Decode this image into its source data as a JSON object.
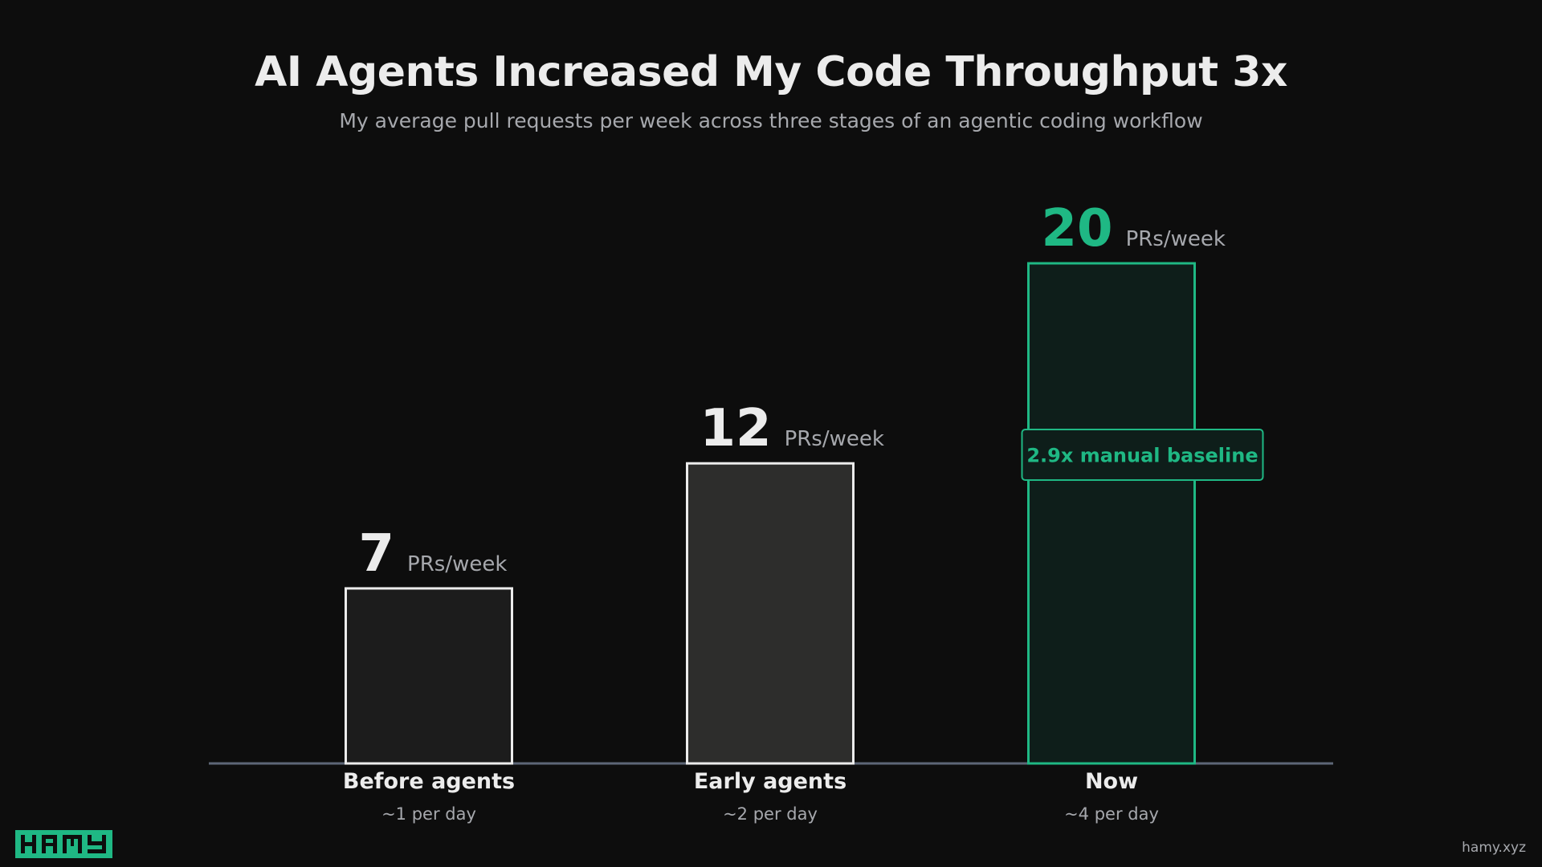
{
  "header": {
    "title": "AI Agents Increased My Code Throughput 3x",
    "subtitle": "My average pull requests per week across three stages of an agentic coding workflow"
  },
  "chart_data": {
    "type": "bar",
    "title": "AI Agents Increased My Code Throughput 3x",
    "subtitle": "My average pull requests per week across three stages of an agentic coding workflow",
    "categories": [
      "Before agents",
      "Early agents",
      "Now"
    ],
    "category_notes": [
      "~1 per day",
      "~2 per day",
      "~4 per day"
    ],
    "values": [
      7,
      12,
      20
    ],
    "value_unit": "PRs/week",
    "annotation": {
      "category": "Now",
      "text": "2.9x manual baseline"
    },
    "ylim": [
      0,
      20
    ],
    "grid": false,
    "legend": "none",
    "colors": {
      "bar_fills": [
        "#1c1c1c",
        "#2d2d2c",
        "#0e1e1a"
      ],
      "bar_strokes": [
        "#ececec",
        "#ececec",
        "#1fb884"
      ],
      "value_label_colors": [
        "#ececec",
        "#ececec",
        "#1fb884"
      ],
      "unit_color": "#a6a8ad",
      "axis": "#5d6677",
      "highlight": "#1fb884"
    }
  },
  "footer": {
    "logo_text": "HAMY",
    "site": "hamy.xyz",
    "logo_color": "#1fb884"
  }
}
